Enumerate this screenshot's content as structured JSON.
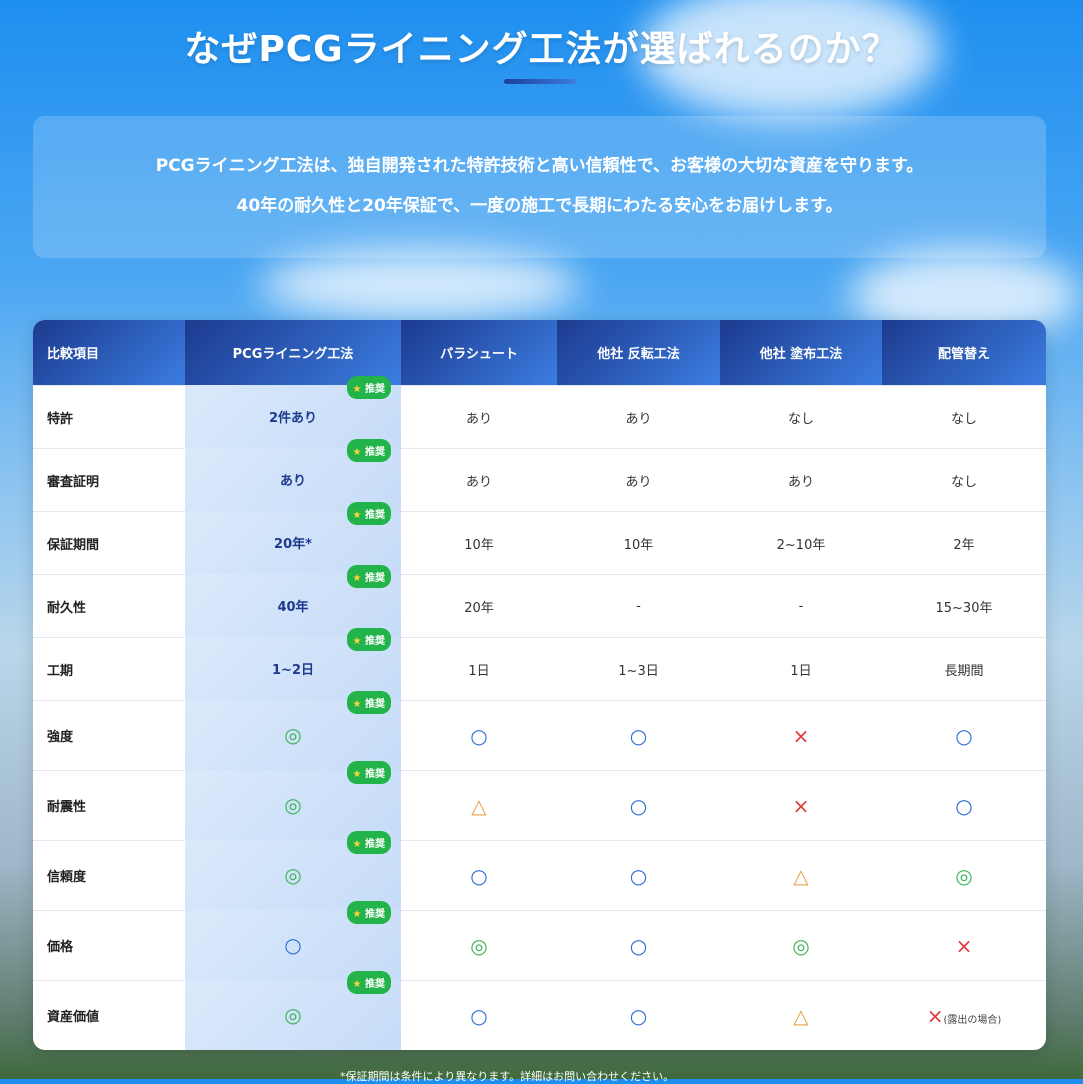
{
  "title": "なぜPCGライニング工法が選ばれるのか？",
  "intro": [
    "PCGライニング工法は、独自開発された特許技術と高い信頼性で、お客様の大切な資産を守ります。",
    "40年の耐久性と20年保証で、一度の施工で長期にわたる安心をお届けします。"
  ],
  "badge": "推奨",
  "headers": [
    "比較項目",
    "PCGライニング工法",
    "パラシュート",
    "他社 反転工法",
    "他社 塗布工法",
    "配管替え"
  ],
  "rows": [
    {
      "label": "特許",
      "cells": [
        "2件あり",
        "あり",
        "あり",
        "なし",
        "なし"
      ]
    },
    {
      "label": "審査証明",
      "cells": [
        "あり",
        "あり",
        "あり",
        "あり",
        "なし"
      ]
    },
    {
      "label": "保証期間",
      "cells": [
        "20年*",
        "10年",
        "10年",
        "2~10年",
        "2年"
      ]
    },
    {
      "label": "耐久性",
      "cells": [
        "40年",
        "20年",
        "-",
        "-",
        "15~30年"
      ]
    },
    {
      "label": "工期",
      "cells": [
        "1~2日",
        "1日",
        "1~3日",
        "1日",
        "長期間"
      ]
    },
    {
      "label": "強度",
      "cells": [
        "◎",
        "○",
        "○",
        "×",
        "○"
      ]
    },
    {
      "label": "耐震性",
      "cells": [
        "◎",
        "△",
        "○",
        "×",
        "○"
      ]
    },
    {
      "label": "信頼度",
      "cells": [
        "◎",
        "○",
        "○",
        "△",
        "◎"
      ]
    },
    {
      "label": "価格",
      "cells": [
        "○",
        "◎",
        "○",
        "◎",
        "×"
      ]
    },
    {
      "label": "資産価値",
      "cells": [
        "◎",
        "○",
        "○",
        "△",
        "×"
      ]
    }
  ],
  "last_note": "(露出の場合)",
  "footnote": "*保証期間は条件により異なります。詳細はお問い合わせください。",
  "colors": {
    "excellent": "#3cb35a",
    "good": "#2f6fd6",
    "poor": "#e0383a",
    "fair": "#e8a24a",
    "badge": "#22b34a"
  }
}
